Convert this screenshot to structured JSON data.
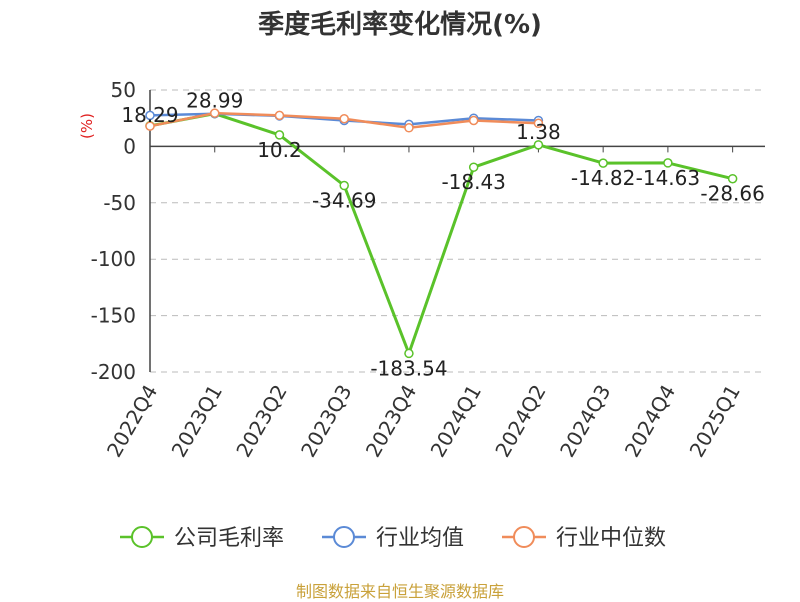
{
  "chart_data": {
    "type": "line",
    "title": "季度毛利率变化情况(%)",
    "ylabel": "(%)",
    "xlabel": "",
    "categories": [
      "2022Q4",
      "2023Q1",
      "2023Q2",
      "2023Q3",
      "2023Q4",
      "2024Q1",
      "2024Q2",
      "2024Q3",
      "2024Q4",
      "2025Q1"
    ],
    "ylim": [
      -200,
      50
    ],
    "yticks": [
      50,
      0,
      -50,
      -100,
      -150,
      -200
    ],
    "grid": true,
    "legend_position": "bottom",
    "series": [
      {
        "name": "公司毛利率",
        "color": "#5ac22a",
        "values": [
          18.29,
          28.99,
          10.2,
          -34.69,
          -183.54,
          -18.43,
          1.38,
          -14.82,
          -14.63,
          -28.66
        ],
        "labels": [
          "18.29",
          "28.99",
          "10.2",
          "-34.69",
          "-183.54",
          "-18.43",
          "1.38",
          "-14.82",
          "-14.63",
          "-28.66"
        ]
      },
      {
        "name": "行业均值",
        "color": "#5b8ad6",
        "values": [
          27.5,
          29.0,
          27.0,
          23.0,
          19.5,
          25.0,
          23.0,
          null,
          null,
          null
        ]
      },
      {
        "name": "行业中位数",
        "color": "#f08c5a",
        "values": [
          18.0,
          29.5,
          27.5,
          24.5,
          16.5,
          23.0,
          20.5,
          null,
          null,
          null
        ]
      }
    ]
  },
  "source_note": "制图数据来自恒生聚源数据库"
}
